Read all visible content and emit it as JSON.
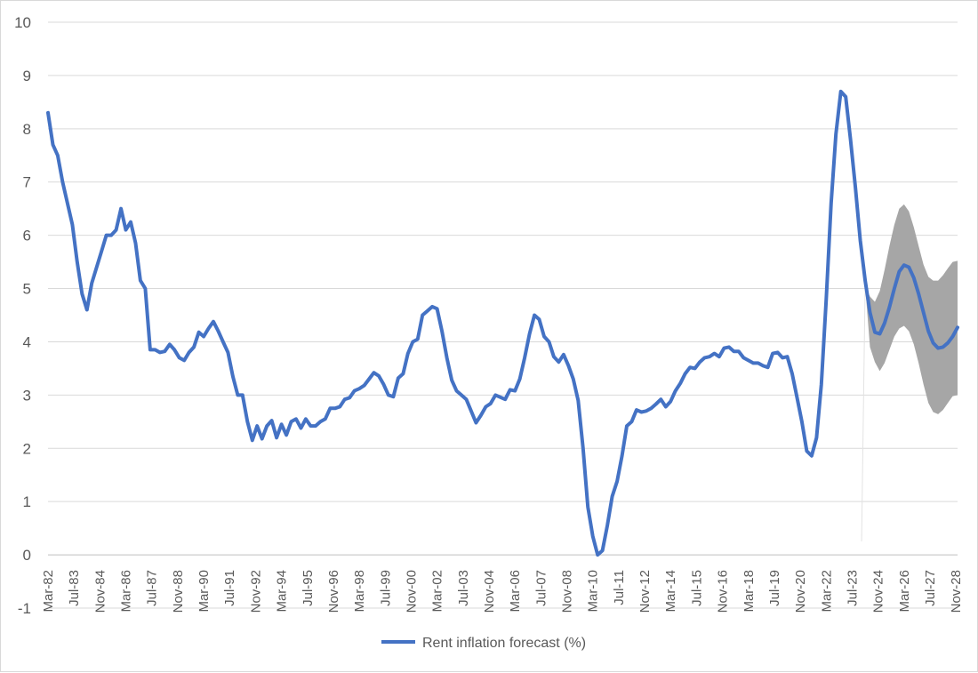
{
  "chart_data": {
    "type": "line",
    "title": "",
    "xlabel": "",
    "ylabel": "",
    "ylim": [
      -1,
      10
    ],
    "yticks": [
      -1,
      0,
      1,
      2,
      3,
      4,
      5,
      6,
      7,
      8,
      9,
      10
    ],
    "x_tick_labels": [
      "Mar-82",
      "Jul-83",
      "Nov-84",
      "Mar-86",
      "Jul-87",
      "Nov-88",
      "Mar-90",
      "Jul-91",
      "Nov-92",
      "Mar-94",
      "Jul-95",
      "Nov-96",
      "Mar-98",
      "Jul-99",
      "Nov-00",
      "Mar-02",
      "Jul-03",
      "Nov-04",
      "Mar-06",
      "Jul-07",
      "Nov-08",
      "Mar-10",
      "Jul-11",
      "Nov-12",
      "Mar-14",
      "Jul-15",
      "Nov-16",
      "Mar-18",
      "Jul-19",
      "Nov-20",
      "Mar-22",
      "Jul-23",
      "Nov-24",
      "Mar-26",
      "Jul-27",
      "Nov-28"
    ],
    "grid": true,
    "legend_position": "bottom",
    "colors": {
      "line": "#4472c4",
      "band": "#a6a6a6",
      "grid": "#d9d9d9",
      "text": "#595959"
    },
    "series": [
      {
        "name": "Rent inflation forecast (%)",
        "points": [
          [
            "Mar-82",
            8.3
          ],
          [
            "Jun-82",
            7.7
          ],
          [
            "Sep-82",
            7.5
          ],
          [
            "Dec-82",
            7.0
          ],
          [
            "Mar-83",
            6.6
          ],
          [
            "Jun-83",
            6.2
          ],
          [
            "Sep-83",
            5.5
          ],
          [
            "Dec-83",
            4.9
          ],
          [
            "Mar-84",
            4.6
          ],
          [
            "Jun-84",
            5.1
          ],
          [
            "Sep-84",
            5.4
          ],
          [
            "Dec-84",
            5.7
          ],
          [
            "Mar-85",
            6.0
          ],
          [
            "Jun-85",
            6.0
          ],
          [
            "Sep-85",
            6.1
          ],
          [
            "Dec-85",
            6.5
          ],
          [
            "Mar-86",
            6.1
          ],
          [
            "Jun-86",
            6.25
          ],
          [
            "Sep-86",
            5.85
          ],
          [
            "Dec-86",
            5.15
          ],
          [
            "Mar-87",
            5.0
          ],
          [
            "Jun-87",
            3.85
          ],
          [
            "Sep-87",
            3.85
          ],
          [
            "Dec-87",
            3.8
          ],
          [
            "Mar-88",
            3.82
          ],
          [
            "Jun-88",
            3.95
          ],
          [
            "Sep-88",
            3.85
          ],
          [
            "Dec-88",
            3.7
          ],
          [
            "Mar-89",
            3.65
          ],
          [
            "Jun-89",
            3.8
          ],
          [
            "Sep-89",
            3.9
          ],
          [
            "Dec-89",
            4.18
          ],
          [
            "Mar-90",
            4.1
          ],
          [
            "Jun-90",
            4.25
          ],
          [
            "Sep-90",
            4.38
          ],
          [
            "Dec-90",
            4.2
          ],
          [
            "Mar-91",
            4.0
          ],
          [
            "Jun-91",
            3.8
          ],
          [
            "Sep-91",
            3.35
          ],
          [
            "Dec-91",
            3.0
          ],
          [
            "Mar-92",
            3.0
          ],
          [
            "Jun-92",
            2.5
          ],
          [
            "Sep-92",
            2.15
          ],
          [
            "Dec-92",
            2.42
          ],
          [
            "Mar-93",
            2.18
          ],
          [
            "Jun-93",
            2.42
          ],
          [
            "Sep-93",
            2.52
          ],
          [
            "Dec-93",
            2.2
          ],
          [
            "Mar-94",
            2.45
          ],
          [
            "Jun-94",
            2.25
          ],
          [
            "Sep-94",
            2.5
          ],
          [
            "Dec-94",
            2.55
          ],
          [
            "Mar-95",
            2.38
          ],
          [
            "Jun-95",
            2.55
          ],
          [
            "Sep-95",
            2.42
          ],
          [
            "Dec-95",
            2.42
          ],
          [
            "Mar-96",
            2.5
          ],
          [
            "Jun-96",
            2.55
          ],
          [
            "Sep-96",
            2.75
          ],
          [
            "Dec-96",
            2.75
          ],
          [
            "Mar-97",
            2.78
          ],
          [
            "Jun-97",
            2.92
          ],
          [
            "Sep-97",
            2.95
          ],
          [
            "Dec-97",
            3.08
          ],
          [
            "Mar-98",
            3.12
          ],
          [
            "Jun-98",
            3.18
          ],
          [
            "Sep-98",
            3.3
          ],
          [
            "Dec-98",
            3.42
          ],
          [
            "Mar-99",
            3.36
          ],
          [
            "Jun-99",
            3.2
          ],
          [
            "Sep-99",
            3.0
          ],
          [
            "Dec-99",
            2.97
          ],
          [
            "Mar-00",
            3.32
          ],
          [
            "Jun-00",
            3.4
          ],
          [
            "Sep-00",
            3.78
          ],
          [
            "Dec-00",
            4.0
          ],
          [
            "Mar-01",
            4.05
          ],
          [
            "Jun-01",
            4.5
          ],
          [
            "Sep-01",
            4.58
          ],
          [
            "Dec-01",
            4.66
          ],
          [
            "Mar-02",
            4.62
          ],
          [
            "Jun-02",
            4.2
          ],
          [
            "Sep-02",
            3.7
          ],
          [
            "Dec-02",
            3.28
          ],
          [
            "Mar-03",
            3.08
          ],
          [
            "Jun-03",
            3.0
          ],
          [
            "Sep-03",
            2.92
          ],
          [
            "Dec-03",
            2.7
          ],
          [
            "Mar-04",
            2.48
          ],
          [
            "Jun-04",
            2.62
          ],
          [
            "Sep-04",
            2.78
          ],
          [
            "Dec-04",
            2.84
          ],
          [
            "Mar-05",
            3.0
          ],
          [
            "Jun-05",
            2.96
          ],
          [
            "Sep-05",
            2.92
          ],
          [
            "Dec-05",
            3.1
          ],
          [
            "Mar-06",
            3.08
          ],
          [
            "Jun-06",
            3.3
          ],
          [
            "Sep-06",
            3.7
          ],
          [
            "Dec-06",
            4.15
          ],
          [
            "Mar-07",
            4.5
          ],
          [
            "Jun-07",
            4.42
          ],
          [
            "Sep-07",
            4.1
          ],
          [
            "Dec-07",
            4.0
          ],
          [
            "Mar-08",
            3.72
          ],
          [
            "Jun-08",
            3.62
          ],
          [
            "Sep-08",
            3.76
          ],
          [
            "Dec-08",
            3.55
          ],
          [
            "Mar-09",
            3.3
          ],
          [
            "Jun-09",
            2.9
          ],
          [
            "Sep-09",
            2.0
          ],
          [
            "Dec-09",
            0.9
          ],
          [
            "Mar-10",
            0.35
          ],
          [
            "Jun-10",
            0.0
          ],
          [
            "Sep-10",
            0.08
          ],
          [
            "Dec-10",
            0.55
          ],
          [
            "Mar-11",
            1.1
          ],
          [
            "Jun-11",
            1.38
          ],
          [
            "Sep-11",
            1.85
          ],
          [
            "Dec-11",
            2.42
          ],
          [
            "Mar-12",
            2.5
          ],
          [
            "Jun-12",
            2.72
          ],
          [
            "Sep-12",
            2.68
          ],
          [
            "Dec-12",
            2.7
          ],
          [
            "Mar-13",
            2.75
          ],
          [
            "Jun-13",
            2.83
          ],
          [
            "Sep-13",
            2.92
          ],
          [
            "Dec-13",
            2.78
          ],
          [
            "Mar-14",
            2.88
          ],
          [
            "Jun-14",
            3.08
          ],
          [
            "Sep-14",
            3.22
          ],
          [
            "Dec-14",
            3.4
          ],
          [
            "Mar-15",
            3.52
          ],
          [
            "Jun-15",
            3.5
          ],
          [
            "Sep-15",
            3.62
          ],
          [
            "Dec-15",
            3.7
          ],
          [
            "Mar-16",
            3.72
          ],
          [
            "Jun-16",
            3.78
          ],
          [
            "Sep-16",
            3.72
          ],
          [
            "Dec-16",
            3.88
          ],
          [
            "Mar-17",
            3.9
          ],
          [
            "Jun-17",
            3.82
          ],
          [
            "Sep-17",
            3.82
          ],
          [
            "Dec-17",
            3.7
          ],
          [
            "Mar-18",
            3.65
          ],
          [
            "Jun-18",
            3.6
          ],
          [
            "Sep-18",
            3.6
          ],
          [
            "Dec-18",
            3.55
          ],
          [
            "Mar-19",
            3.52
          ],
          [
            "Jun-19",
            3.78
          ],
          [
            "Sep-19",
            3.8
          ],
          [
            "Dec-19",
            3.7
          ],
          [
            "Mar-20",
            3.72
          ],
          [
            "Jun-20",
            3.4
          ],
          [
            "Sep-20",
            2.95
          ],
          [
            "Dec-20",
            2.5
          ],
          [
            "Mar-21",
            1.95
          ],
          [
            "Jun-21",
            1.86
          ],
          [
            "Sep-21",
            2.2
          ],
          [
            "Dec-21",
            3.2
          ],
          [
            "Mar-22",
            4.8
          ],
          [
            "Jun-22",
            6.6
          ],
          [
            "Sep-22",
            7.9
          ],
          [
            "Dec-22",
            8.7
          ],
          [
            "Mar-23",
            8.6
          ],
          [
            "Jun-23",
            7.8
          ],
          [
            "Sep-23",
            6.9
          ],
          [
            "Dec-23",
            5.9
          ],
          [
            "Mar-24",
            5.15
          ],
          [
            "Jun-24",
            4.55
          ],
          [
            "Sep-24",
            4.18
          ],
          [
            "Dec-24",
            4.15
          ],
          [
            "Mar-25",
            4.35
          ],
          [
            "Jun-25",
            4.65
          ],
          [
            "Sep-25",
            5.0
          ],
          [
            "Dec-25",
            5.32
          ],
          [
            "Mar-26",
            5.44
          ],
          [
            "Jun-26",
            5.4
          ],
          [
            "Sep-26",
            5.2
          ],
          [
            "Dec-26",
            4.9
          ],
          [
            "Mar-27",
            4.55
          ],
          [
            "Jun-27",
            4.2
          ],
          [
            "Sep-27",
            3.98
          ],
          [
            "Dec-27",
            3.88
          ],
          [
            "Mar-28",
            3.9
          ],
          [
            "Jun-28",
            3.98
          ],
          [
            "Sep-28",
            4.1
          ],
          [
            "Dec-28",
            4.27
          ]
        ]
      }
    ],
    "confidence_band": [
      [
        "Mar-24",
        5.05,
        5.05
      ],
      [
        "Jun-24",
        4.85,
        3.9
      ],
      [
        "Sep-24",
        4.75,
        3.62
      ],
      [
        "Dec-24",
        4.95,
        3.45
      ],
      [
        "Mar-25",
        5.35,
        3.6
      ],
      [
        "Jun-25",
        5.8,
        3.85
      ],
      [
        "Sep-25",
        6.2,
        4.1
      ],
      [
        "Dec-25",
        6.5,
        4.25
      ],
      [
        "Mar-26",
        6.58,
        4.3
      ],
      [
        "Jun-26",
        6.45,
        4.2
      ],
      [
        "Sep-26",
        6.15,
        3.95
      ],
      [
        "Dec-26",
        5.8,
        3.6
      ],
      [
        "Mar-27",
        5.45,
        3.2
      ],
      [
        "Jun-27",
        5.22,
        2.85
      ],
      [
        "Sep-27",
        5.15,
        2.68
      ],
      [
        "Dec-27",
        5.15,
        2.64
      ],
      [
        "Mar-28",
        5.25,
        2.72
      ],
      [
        "Jun-28",
        5.38,
        2.85
      ],
      [
        "Sep-28",
        5.5,
        2.98
      ],
      [
        "Dec-28",
        5.52,
        3.0
      ]
    ]
  }
}
